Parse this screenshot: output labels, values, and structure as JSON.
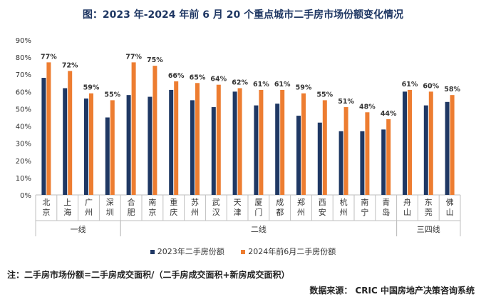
{
  "title": "图：2023 年-2024 年前 6 月 20 个重点城市二手房市场份额变化情况",
  "note": "注：二手房市场份额=二手房成交面积/（二手房成交面积+新房成交面积）",
  "source": "数据来源：  CRIC 中国房地产决策咨询系统",
  "colors": {
    "series2023": "#1f3864",
    "series2024": "#ed7d31",
    "axis": "#bfbfbf"
  },
  "chart_data": {
    "type": "bar",
    "ylim": [
      0,
      90
    ],
    "yticks": [
      "0%",
      "10%",
      "20%",
      "30%",
      "40%",
      "50%",
      "60%",
      "70%",
      "80%",
      "90%"
    ],
    "categories": [
      "北京",
      "上海",
      "广州",
      "深圳",
      "合肥",
      "南京",
      "重庆",
      "苏州",
      "武汉",
      "天津",
      "厦门",
      "成都",
      "郑州",
      "西安",
      "杭州",
      "南宁",
      "青岛",
      "舟山",
      "东莞",
      "佛山"
    ],
    "groups": [
      {
        "label": "一线",
        "count": 4
      },
      {
        "label": "二线",
        "count": 13
      },
      {
        "label": "三四线",
        "count": 3
      }
    ],
    "series": [
      {
        "name": "2023年二手房份额",
        "values": [
          68,
          62,
          56,
          45,
          58,
          57,
          61,
          55,
          51,
          60,
          52,
          53,
          46,
          42,
          37,
          37,
          38,
          60,
          52,
          54
        ]
      },
      {
        "name": "2024年前6月二手房份额",
        "values": [
          77,
          72,
          59,
          55,
          77,
          75,
          66,
          65,
          64,
          62,
          61,
          61,
          59,
          55,
          51,
          48,
          44,
          61,
          60,
          58
        ]
      }
    ],
    "data_labels": [
      "77%",
      "72%",
      "59%",
      "55%",
      "77%",
      "75%",
      "66%",
      "65%",
      "64%",
      "62%",
      "61%",
      "61%",
      "59%",
      "55%",
      "51%",
      "48%",
      "44%",
      "61%",
      "60%",
      "58%"
    ]
  }
}
